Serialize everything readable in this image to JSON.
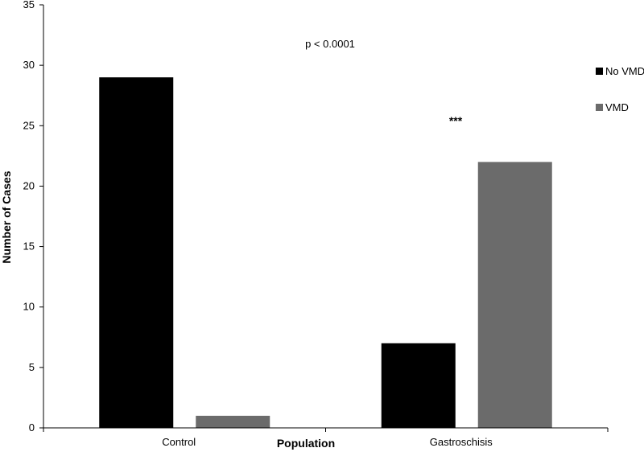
{
  "chart_data": {
    "type": "bar",
    "categories": [
      "Control",
      "Gastroschisis"
    ],
    "series": [
      {
        "name": "No VMD",
        "values": [
          29,
          7
        ],
        "color": "#000000"
      },
      {
        "name": "VMD",
        "values": [
          1,
          22
        ],
        "color": "#6b6b6b"
      }
    ],
    "xlabel": "Population",
    "ylabel": "Number of Cases",
    "ylim": [
      0,
      35
    ],
    "yticks": [
      0,
      5,
      10,
      15,
      20,
      25,
      30,
      35
    ],
    "grid": false,
    "legend_position": "right",
    "annotations": {
      "pvalue": "p < 0.0001",
      "significance": "***"
    }
  }
}
